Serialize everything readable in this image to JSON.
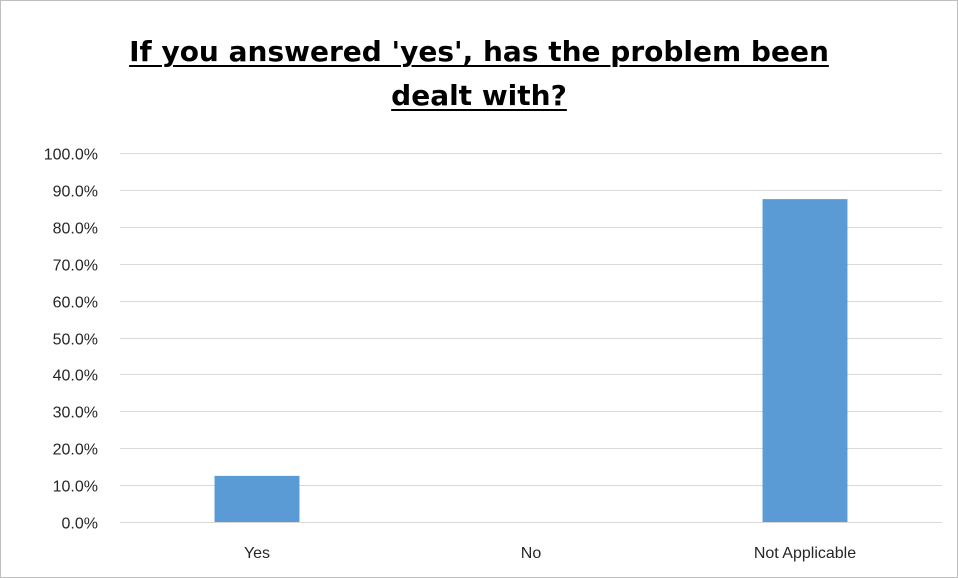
{
  "chart_data": {
    "type": "bar",
    "title": "If you answered 'yes', has the problem been dealt with?",
    "categories": [
      "Yes",
      "No",
      "Not Applicable"
    ],
    "values": [
      12.5,
      0.0,
      87.5
    ],
    "ylim": [
      0,
      100
    ],
    "y_tick_step": 10,
    "y_tick_format": "percent_1dp",
    "y_ticks": [
      "0.0%",
      "10.0%",
      "20.0%",
      "30.0%",
      "40.0%",
      "50.0%",
      "60.0%",
      "70.0%",
      "80.0%",
      "90.0%",
      "100.0%"
    ],
    "xlabel": "",
    "ylabel": "",
    "grid": true,
    "legend": "none",
    "bar_color": "#5B9BD5",
    "grid_color": "#d9d9d9"
  }
}
